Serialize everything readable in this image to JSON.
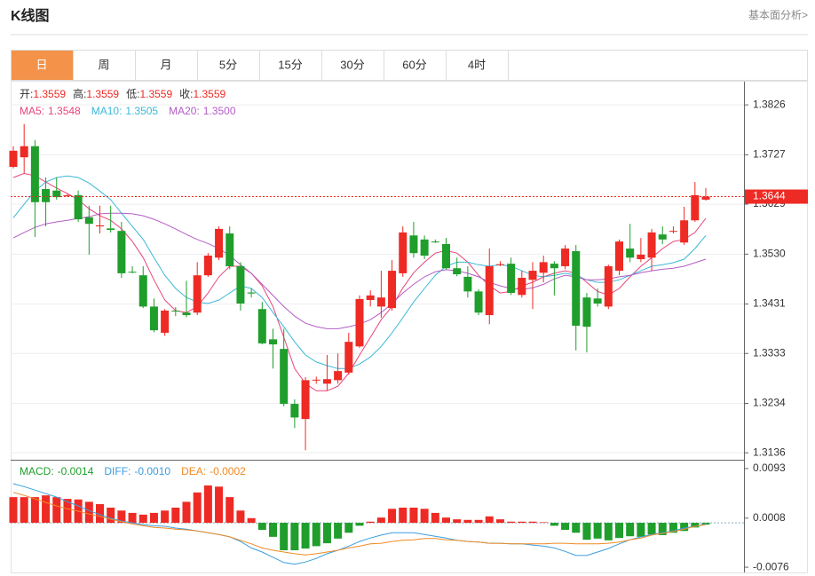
{
  "header": {
    "title": "K线图",
    "link": "基本面分析>"
  },
  "tabs": {
    "items": [
      "日",
      "周",
      "月",
      "5分",
      "15分",
      "30分",
      "60分",
      "4时"
    ],
    "active": 0
  },
  "chart_data": [
    {
      "type": "candlestick",
      "info": [
        {
          "label": "开:",
          "value": 1.3559
        },
        {
          "label": "高:",
          "value": 1.3559
        },
        {
          "label": "低:",
          "value": 1.3559
        },
        {
          "label": "收:",
          "value": 1.3559
        }
      ],
      "up_color": "#ee2a24",
      "down_color": "#1f9e2c",
      "categories": [
        null,
        null,
        null,
        null,
        null,
        null,
        null,
        null,
        null,
        null,
        null,
        null,
        null,
        null,
        null,
        null,
        null,
        null,
        null,
        null,
        null,
        null,
        null,
        null,
        null,
        null,
        null,
        null,
        null,
        null,
        null,
        null,
        null,
        null,
        null,
        null,
        null,
        null,
        null,
        null,
        null,
        null,
        null,
        null,
        null,
        null,
        null,
        null,
        null,
        null,
        null,
        null,
        null,
        null,
        null,
        null,
        null,
        null,
        null,
        null,
        null,
        null,
        null,
        null,
        null
      ],
      "open": [
        1.3703,
        1.3722,
        1.3744,
        1.3659,
        1.3656,
        1.3646,
        1.3647,
        1.3603,
        1.3585,
        1.3581,
        1.3576,
        1.3495,
        1.3488,
        1.3426,
        1.3374,
        1.3418,
        1.3414,
        1.3414,
        1.3488,
        1.3523,
        1.3571,
        1.3506,
        1.3454,
        1.3421,
        1.3361,
        1.3342,
        1.3233,
        1.3203,
        1.328,
        1.3273,
        1.328,
        1.3295,
        1.3347,
        1.3439,
        1.3426,
        1.3423,
        1.3492,
        1.3567,
        1.3559,
        1.3555,
        1.355,
        1.3502,
        1.3485,
        1.3456,
        1.3409,
        1.3509,
        1.3511,
        1.3449,
        1.3479,
        1.3493,
        1.3511,
        1.3506,
        1.3536,
        1.3444,
        1.3442,
        1.3426,
        1.3497,
        1.3541,
        1.352,
        1.3523,
        1.3569,
        1.3575,
        1.3553,
        1.3597,
        1.3638
      ],
      "high": [
        1.3744,
        1.3788,
        1.3756,
        1.3682,
        1.3682,
        1.3649,
        1.3656,
        1.3626,
        1.3626,
        1.3626,
        1.3594,
        1.3506,
        1.3506,
        1.3442,
        1.3421,
        1.3425,
        1.3477,
        1.3514,
        1.3532,
        1.3585,
        1.3585,
        1.3514,
        1.3462,
        1.3435,
        1.3382,
        1.3382,
        1.3242,
        1.3286,
        1.3287,
        1.333,
        1.3333,
        1.3374,
        1.3448,
        1.3458,
        1.3497,
        1.3518,
        1.3585,
        1.3594,
        1.3567,
        1.3559,
        1.3562,
        1.3523,
        1.3506,
        1.346,
        1.3541,
        1.3516,
        1.3523,
        1.3497,
        1.3514,
        1.3527,
        1.3516,
        1.3548,
        1.3548,
        1.3453,
        1.3462,
        1.3509,
        1.3559,
        1.359,
        1.3562,
        1.358,
        1.3585,
        1.3585,
        1.3624,
        1.3673,
        1.3661
      ],
      "low": [
        1.37,
        1.3691,
        1.3564,
        1.3585,
        1.3638,
        1.3643,
        1.3594,
        1.3529,
        1.3571,
        1.3573,
        1.3483,
        1.3492,
        1.3423,
        1.3375,
        1.3368,
        1.3407,
        1.3405,
        1.3409,
        1.3485,
        1.3518,
        1.35,
        1.3418,
        1.3444,
        1.3351,
        1.3303,
        1.3228,
        1.3185,
        1.3141,
        1.3273,
        1.3259,
        1.3273,
        1.3291,
        1.3344,
        1.3426,
        1.3404,
        1.3418,
        1.3485,
        1.3523,
        1.352,
        1.3552,
        1.3499,
        1.3486,
        1.3444,
        1.3409,
        1.3391,
        1.3506,
        1.3449,
        1.3444,
        1.3421,
        1.3474,
        1.3448,
        1.35,
        1.3339,
        1.3335,
        1.3426,
        1.3421,
        1.3488,
        1.3514,
        1.3514,
        1.3497,
        1.355,
        1.3571,
        1.3548,
        1.3594,
        1.3636
      ],
      "close": [
        1.3735,
        1.3744,
        1.3633,
        1.3633,
        1.3643,
        1.3647,
        1.3599,
        1.359,
        1.3587,
        1.3578,
        1.3492,
        1.3494,
        1.3426,
        1.3379,
        1.3418,
        1.3417,
        1.3409,
        1.3488,
        1.3527,
        1.358,
        1.3506,
        1.3432,
        1.3452,
        1.3353,
        1.3351,
        1.3233,
        1.3206,
        1.328,
        1.3281,
        1.3282,
        1.3298,
        1.3356,
        1.3441,
        1.3448,
        1.3444,
        1.3497,
        1.3573,
        1.3532,
        1.3527,
        1.3554,
        1.3502,
        1.349,
        1.3456,
        1.3414,
        1.3506,
        1.351,
        1.3453,
        1.3483,
        1.3497,
        1.3514,
        1.3502,
        1.3541,
        1.3388,
        1.3386,
        1.3432,
        1.3506,
        1.3555,
        1.3523,
        1.3529,
        1.3573,
        1.3559,
        1.3576,
        1.3597,
        1.3647,
        1.3644
      ],
      "series": [
        {
          "name": "MA5:",
          "legend_value": 1.3548,
          "color": "#e8457b",
          "values": [
            1.3682,
            1.369,
            1.3685,
            1.3673,
            1.3661,
            1.365,
            1.3638,
            1.362,
            1.3606,
            1.3597,
            1.358,
            1.3555,
            1.3523,
            1.3479,
            1.3439,
            1.3418,
            1.3414,
            1.3426,
            1.3453,
            1.3485,
            1.3506,
            1.3506,
            1.3492,
            1.3467,
            1.3426,
            1.3365,
            1.3303,
            1.3273,
            1.3259,
            1.3259,
            1.3268,
            1.3294,
            1.333,
            1.3365,
            1.34,
            1.3426,
            1.3463,
            1.3493,
            1.3514,
            1.3532,
            1.3537,
            1.3532,
            1.3514,
            1.3488,
            1.3467,
            1.3453,
            1.3456,
            1.3467,
            1.3474,
            1.3485,
            1.3492,
            1.3497,
            1.3492,
            1.3474,
            1.3456,
            1.3449,
            1.3462,
            1.3485,
            1.3506,
            1.3523,
            1.3541,
            1.3555,
            1.3559,
            1.3573,
            1.3601
          ]
        },
        {
          "name": "MA10:",
          "legend_value": 1.3505,
          "color": "#3cb8d6",
          "values": [
            1.3602,
            1.3629,
            1.3655,
            1.3673,
            1.3682,
            1.3685,
            1.3682,
            1.3671,
            1.3655,
            1.3638,
            1.3611,
            1.3585,
            1.3559,
            1.3523,
            1.3488,
            1.3462,
            1.3444,
            1.3435,
            1.3432,
            1.3439,
            1.3453,
            1.3467,
            1.3462,
            1.3444,
            1.3414,
            1.3386,
            1.3356,
            1.333,
            1.3316,
            1.3309,
            1.3303,
            1.3303,
            1.3312,
            1.3326,
            1.3347,
            1.3374,
            1.3404,
            1.3435,
            1.3462,
            1.3488,
            1.3506,
            1.3514,
            1.3514,
            1.3509,
            1.3506,
            1.3509,
            1.3506,
            1.3497,
            1.3488,
            1.3485,
            1.3488,
            1.3492,
            1.3488,
            1.3479,
            1.3474,
            1.3474,
            1.3479,
            1.3488,
            1.3497,
            1.3506,
            1.3509,
            1.3513,
            1.352,
            1.3541,
            1.3567
          ]
        },
        {
          "name": "MA20:",
          "legend_value": {
            "value": 1.35,
            "label": "1.3500"
          },
          "color": "#b45cc6",
          "values": [
            1.3562,
            1.3573,
            1.3583,
            1.359,
            1.3594,
            1.3597,
            1.3601,
            1.3604,
            1.361,
            1.3611,
            1.3611,
            1.361,
            1.3606,
            1.3599,
            1.359,
            1.358,
            1.3569,
            1.3559,
            1.3551,
            1.3541,
            1.3527,
            1.3509,
            1.3492,
            1.347,
            1.3448,
            1.3426,
            1.3407,
            1.3393,
            1.3386,
            1.3382,
            1.3382,
            1.3386,
            1.3391,
            1.34,
            1.3414,
            1.3432,
            1.3453,
            1.347,
            1.3485,
            1.3495,
            1.3499,
            1.3497,
            1.3492,
            1.3485,
            1.3474,
            1.3467,
            1.3462,
            1.346,
            1.3463,
            1.347,
            1.3481,
            1.3488,
            1.3485,
            1.3479,
            1.3479,
            1.3481,
            1.3485,
            1.3488,
            1.3493,
            1.3497,
            1.35,
            1.3502,
            1.3506,
            1.3513,
            1.352
          ]
        }
      ],
      "last_price": 1.3644,
      "last_color": "#ee2a24",
      "ylim": [
        1.3124,
        1.3872
      ],
      "yticks": [
        1.3136,
        1.3234,
        1.3333,
        1.3431,
        {
          "value": 1.353,
          "label": "1.3530"
        },
        1.3629,
        1.3727,
        1.3826
      ],
      "grid": true
    },
    {
      "type": "macd",
      "legend": [
        {
          "label": "MACD:",
          "value": -0.0014,
          "color": "#1f9e2c"
        },
        {
          "label": "DIFF:",
          "value": {
            "value": -0.001,
            "label": "-0.0010"
          },
          "color": "#3a9ee0"
        },
        {
          "label": "DEA:",
          "value": -0.0002,
          "color": "#f08a24"
        }
      ],
      "up_color": "#ee2a24",
      "down_color": "#1f9e2c",
      "values": [
        0.0044,
        0.0044,
        0.0044,
        0.0047,
        0.0044,
        0.0041,
        0.004,
        0.0036,
        0.0032,
        0.0026,
        0.0021,
        0.0017,
        0.0014,
        0.0017,
        0.0021,
        0.0026,
        0.0036,
        0.0052,
        0.0064,
        0.0062,
        0.0044,
        0.0021,
        0.0008,
        -0.0012,
        -0.0024,
        -0.0047,
        -0.0047,
        -0.0044,
        -0.004,
        -0.0035,
        -0.0027,
        -0.0017,
        -0.0005,
        0.0002,
        0.0009,
        0.0024,
        0.0026,
        0.0026,
        0.0024,
        0.0017,
        0.0009,
        0.0006,
        0.0005,
        0.0005,
        0.0011,
        0.0006,
        0.0002,
        0.0002,
        0.0002,
        0.0001,
        -0.0005,
        -0.0012,
        -0.0017,
        -0.0029,
        -0.0027,
        -0.003,
        -0.0026,
        -0.0023,
        -0.0024,
        -0.002,
        -0.0021,
        -0.0017,
        -0.0014,
        -0.0008,
        -0.0003
      ],
      "series": [
        {
          "name": "DIFF",
          "color": "#3a9ee0",
          "values": [
            0.0067,
            0.0062,
            0.0056,
            0.005,
            0.0044,
            0.0036,
            0.0029,
            0.0021,
            0.0014,
            0.0008,
            0.0003,
            0.0,
            -0.0003,
            -0.0005,
            -0.0006,
            -0.0009,
            -0.0011,
            -0.0014,
            -0.0017,
            -0.002,
            -0.0024,
            -0.0032,
            -0.0043,
            -0.005,
            -0.0059,
            -0.0068,
            -0.0071,
            -0.0067,
            -0.0061,
            -0.0053,
            -0.0047,
            -0.004,
            -0.0032,
            -0.0026,
            -0.0021,
            -0.0017,
            -0.0017,
            -0.0017,
            -0.002,
            -0.0023,
            -0.0026,
            -0.003,
            -0.0032,
            -0.0033,
            -0.0035,
            -0.0035,
            -0.0036,
            -0.0036,
            -0.0038,
            -0.004,
            -0.0043,
            -0.0049,
            -0.0056,
            -0.0056,
            -0.005,
            -0.0044,
            -0.0036,
            -0.0029,
            -0.0024,
            -0.002,
            -0.0017,
            -0.0014,
            -0.0009,
            -0.0006,
            -0.0002
          ]
        },
        {
          "name": "DEA",
          "color": "#f08a24",
          "values": [
            0.0052,
            0.0047,
            0.0041,
            0.0035,
            0.0029,
            0.0024,
            0.002,
            0.0015,
            0.0011,
            0.0006,
            0.0002,
            -0.0002,
            -0.0005,
            -0.0008,
            -0.0009,
            -0.0011,
            -0.0012,
            -0.0014,
            -0.0017,
            -0.002,
            -0.0024,
            -0.003,
            -0.0036,
            -0.0043,
            -0.0047,
            -0.005,
            -0.0053,
            -0.0055,
            -0.0053,
            -0.005,
            -0.0047,
            -0.0043,
            -0.004,
            -0.0036,
            -0.0035,
            -0.0032,
            -0.003,
            -0.0029,
            -0.0027,
            -0.0027,
            -0.0029,
            -0.003,
            -0.0032,
            -0.0033,
            -0.0035,
            -0.0035,
            -0.0036,
            -0.0036,
            -0.0036,
            -0.0036,
            -0.0035,
            -0.0035,
            -0.0036,
            -0.0036,
            -0.0036,
            -0.0035,
            -0.0033,
            -0.0029,
            -0.0026,
            -0.0021,
            -0.0018,
            -0.0015,
            -0.0011,
            -0.0006,
            -0.0003
          ]
        }
      ],
      "ylim": [
        -0.0085,
        0.0105
      ],
      "yticks": [
        -0.0076,
        0.0008,
        0.0093
      ]
    }
  ]
}
